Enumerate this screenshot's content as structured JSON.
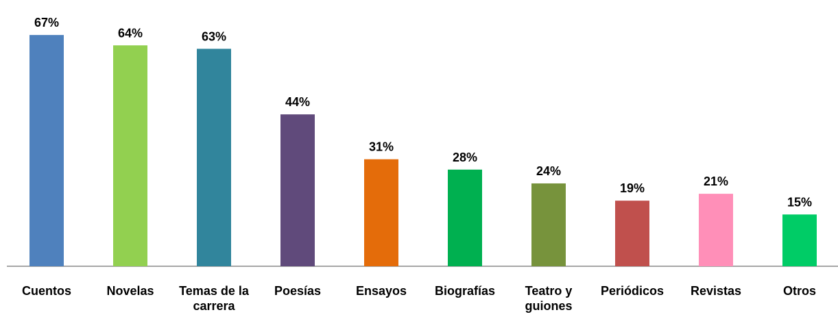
{
  "chart_data": {
    "type": "bar",
    "categories": [
      "Cuentos",
      "Novelas",
      "Temas de la carrera",
      "Poesías",
      "Ensayos",
      "Biografías",
      "Teatro y guiones",
      "Periódicos",
      "Revistas",
      "Otros"
    ],
    "values": [
      67,
      64,
      63,
      44,
      31,
      28,
      24,
      19,
      21,
      15
    ],
    "value_labels": [
      "67%",
      "64%",
      "63%",
      "44%",
      "31%",
      "28%",
      "24%",
      "19%",
      "21%",
      "15%"
    ],
    "colors": [
      "#4f81bd",
      "#92d050",
      "#31859c",
      "#604a7b",
      "#e46c0a",
      "#00b050",
      "#77933c",
      "#c0504d",
      "#ff8fb8",
      "#00cc66"
    ],
    "ylim": [
      0,
      70
    ]
  }
}
